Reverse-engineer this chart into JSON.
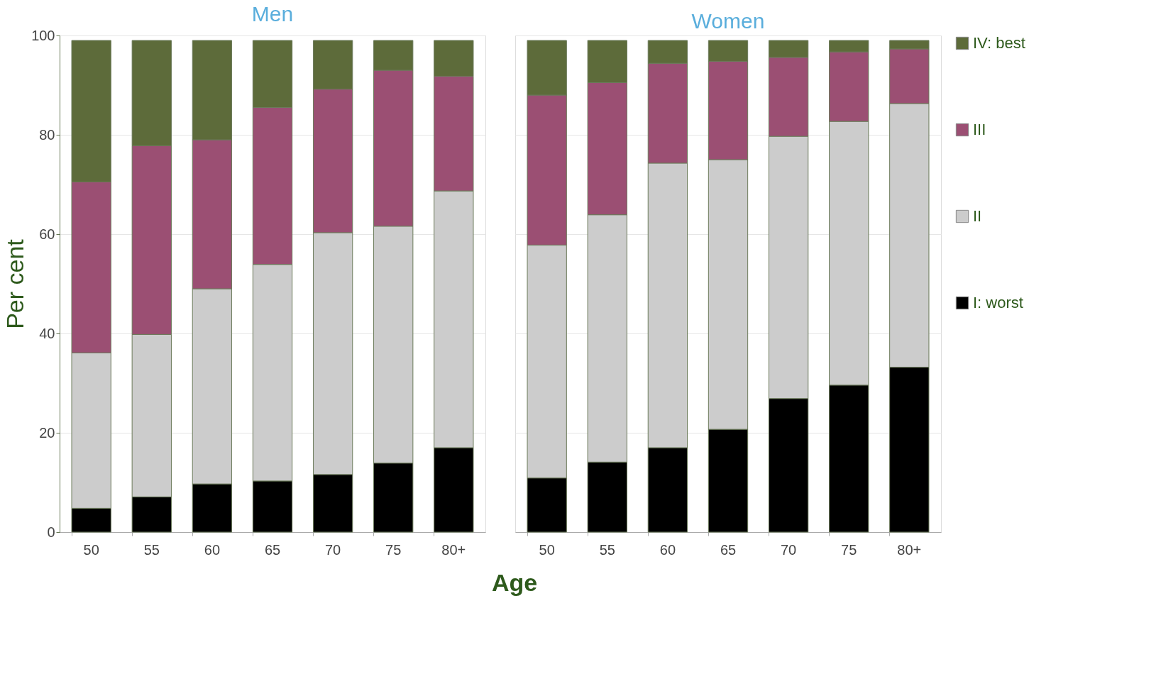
{
  "chart_data": [
    {
      "type": "bar",
      "title": "Men",
      "xlabel": "Age",
      "ylabel": "Per cent",
      "stacked": true,
      "categories": [
        "50",
        "55",
        "60",
        "65",
        "70",
        "75",
        "80+"
      ],
      "series": [
        {
          "name": "I: worst",
          "color": "#000000",
          "values": [
            4.8,
            7.1,
            9.7,
            10.3,
            11.6,
            13.9,
            17.0
          ]
        },
        {
          "name": "II",
          "color": "#cccccc",
          "values": [
            31.3,
            32.7,
            39.3,
            43.6,
            48.7,
            47.7,
            51.7
          ]
        },
        {
          "name": "III",
          "color": "#9b4f73",
          "values": [
            34.4,
            38.0,
            30.0,
            31.6,
            28.9,
            31.4,
            23.1
          ]
        },
        {
          "name": "IV: best",
          "color": "#5d6b3a",
          "values": [
            28.5,
            21.2,
            20.0,
            13.5,
            9.8,
            6.0,
            7.2
          ]
        }
      ],
      "ylim": [
        0,
        100
      ],
      "yticks": [
        0,
        20,
        40,
        60,
        80,
        100
      ],
      "grid": "y",
      "legend": "right"
    },
    {
      "type": "bar",
      "title": "Women",
      "stacked": true,
      "categories": [
        "50",
        "55",
        "60",
        "65",
        "70",
        "75",
        "80+"
      ],
      "series": [
        {
          "name": "I: worst",
          "color": "#000000",
          "values": [
            10.9,
            14.1,
            17.0,
            20.7,
            26.9,
            29.6,
            33.2
          ]
        },
        {
          "name": "II",
          "color": "#cccccc",
          "values": [
            46.9,
            49.8,
            57.3,
            54.3,
            52.8,
            53.1,
            53.1
          ]
        },
        {
          "name": "III",
          "color": "#9b4f73",
          "values": [
            30.2,
            26.6,
            20.1,
            19.8,
            15.9,
            14.0,
            11.0
          ]
        },
        {
          "name": "IV: best",
          "color": "#5d6b3a",
          "values": [
            11.0,
            8.5,
            4.6,
            4.2,
            3.4,
            2.3,
            1.7
          ]
        }
      ],
      "ylim": [
        0,
        100
      ],
      "yticks": [
        0,
        20,
        40,
        60,
        80,
        100
      ],
      "grid": "y",
      "legend": "right",
      "tick_labels": "x"
    }
  ]
}
